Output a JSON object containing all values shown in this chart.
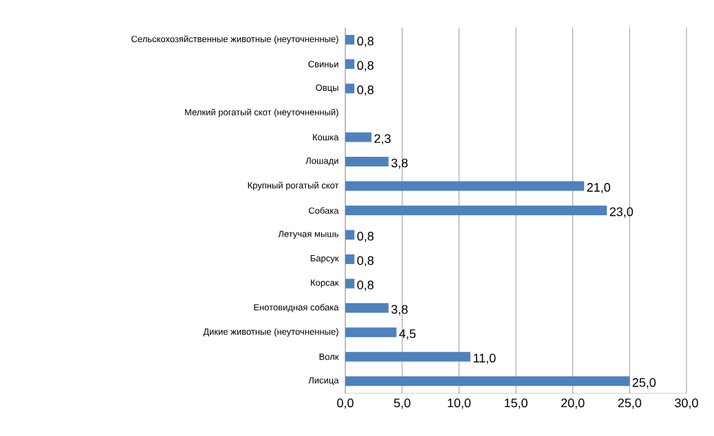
{
  "chart_data": {
    "type": "bar",
    "orientation": "horizontal",
    "color": "#4f81bd",
    "categories": [
      "Сельскохозяйственные животные (неуточненные)",
      "Свиньи",
      "Овцы",
      "Мелкий рогатый скот (неуточненный)",
      "Кошка",
      "Лошади",
      "Крупный рогатый скот",
      "Собака",
      "Летучая мышь",
      "Барсук",
      "Корсак",
      "Енотовидная собака",
      "Дикие животные (неуточненные)",
      "Волк",
      "Лисица"
    ],
    "values": [
      0.8,
      0.8,
      0.8,
      null,
      2.3,
      3.8,
      21.0,
      23.0,
      0.8,
      0.8,
      0.8,
      3.8,
      4.5,
      11.0,
      25.0
    ],
    "value_labels": [
      "0,8",
      "0,8",
      "0,8",
      null,
      "2,3",
      "3,8",
      "21,0",
      "23,0",
      "0,8",
      "0,8",
      "0,8",
      "3,8",
      "4,5",
      "11,0",
      "25,0"
    ],
    "xlim": [
      0,
      30
    ],
    "xticks": [
      {
        "value": 0,
        "label": "0,0"
      },
      {
        "value": 5,
        "label": "5,0"
      },
      {
        "value": 10,
        "label": "10,0"
      },
      {
        "value": 15,
        "label": "15,0"
      },
      {
        "value": 20,
        "label": "20,0"
      },
      {
        "value": 25,
        "label": "25,0"
      },
      {
        "value": 30,
        "label": "30,0"
      }
    ],
    "grid": "x"
  }
}
